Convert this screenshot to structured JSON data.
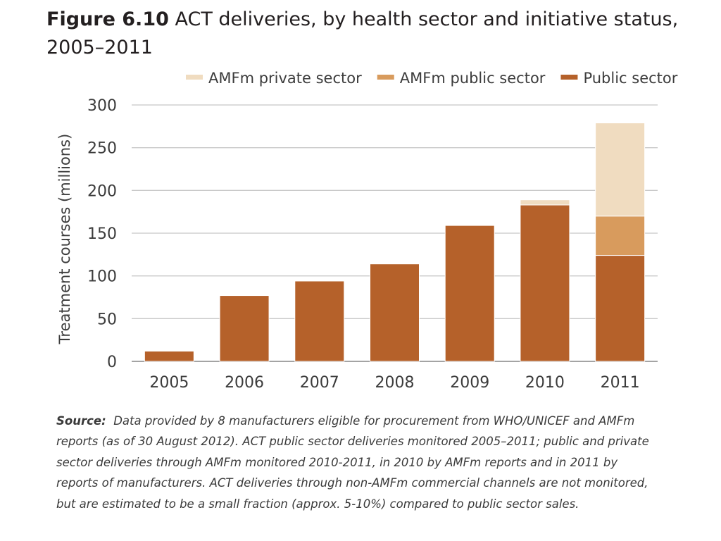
{
  "title": {
    "label": "Figure 6.10",
    "text": "ACT deliveries, by health sector and initiative status, 2005–2011"
  },
  "source": {
    "label": "Source:",
    "text": "Data provided by 8 manufacturers eligible for procurement from WHO/UNICEF and AMFm reports (as of 30 August 2012). ACT public sector deliveries monitored 2005–2011; public and private sector deliveries through AMFm monitored  2010-2011, in 2010 by AMFm reports and in 2011 by reports of manufacturers. ACT deliveries through non-AMFm commercial channels are not monitored, but are estimated to be a small fraction (approx. 5-10%) compared to public sector sales."
  },
  "chart_data": {
    "type": "bar",
    "stacked": true,
    "categories": [
      "2005",
      "2006",
      "2007",
      "2008",
      "2009",
      "2010",
      "2011"
    ],
    "series": [
      {
        "name": "Public sector",
        "color": "#b5612a",
        "values": [
          12,
          77,
          94,
          114,
          159,
          183,
          124
        ]
      },
      {
        "name": "AMFm public sector",
        "color": "#d89b5d",
        "values": [
          0,
          0,
          0,
          0,
          0,
          0,
          46
        ]
      },
      {
        "name": "AMFm private sector",
        "color": "#f0dcc0",
        "values": [
          0,
          0,
          0,
          0,
          0,
          6,
          109
        ]
      }
    ],
    "legend_order": [
      "AMFm private sector",
      "AMFm public sector",
      "Public sector"
    ],
    "ylabel": "Treatment courses (millions)",
    "xlabel": "",
    "ylim": [
      0,
      300
    ],
    "yticks": [
      "0",
      "50",
      "100",
      "150",
      "200",
      "250",
      "300"
    ],
    "grid": true,
    "legend_position": "top-right"
  }
}
